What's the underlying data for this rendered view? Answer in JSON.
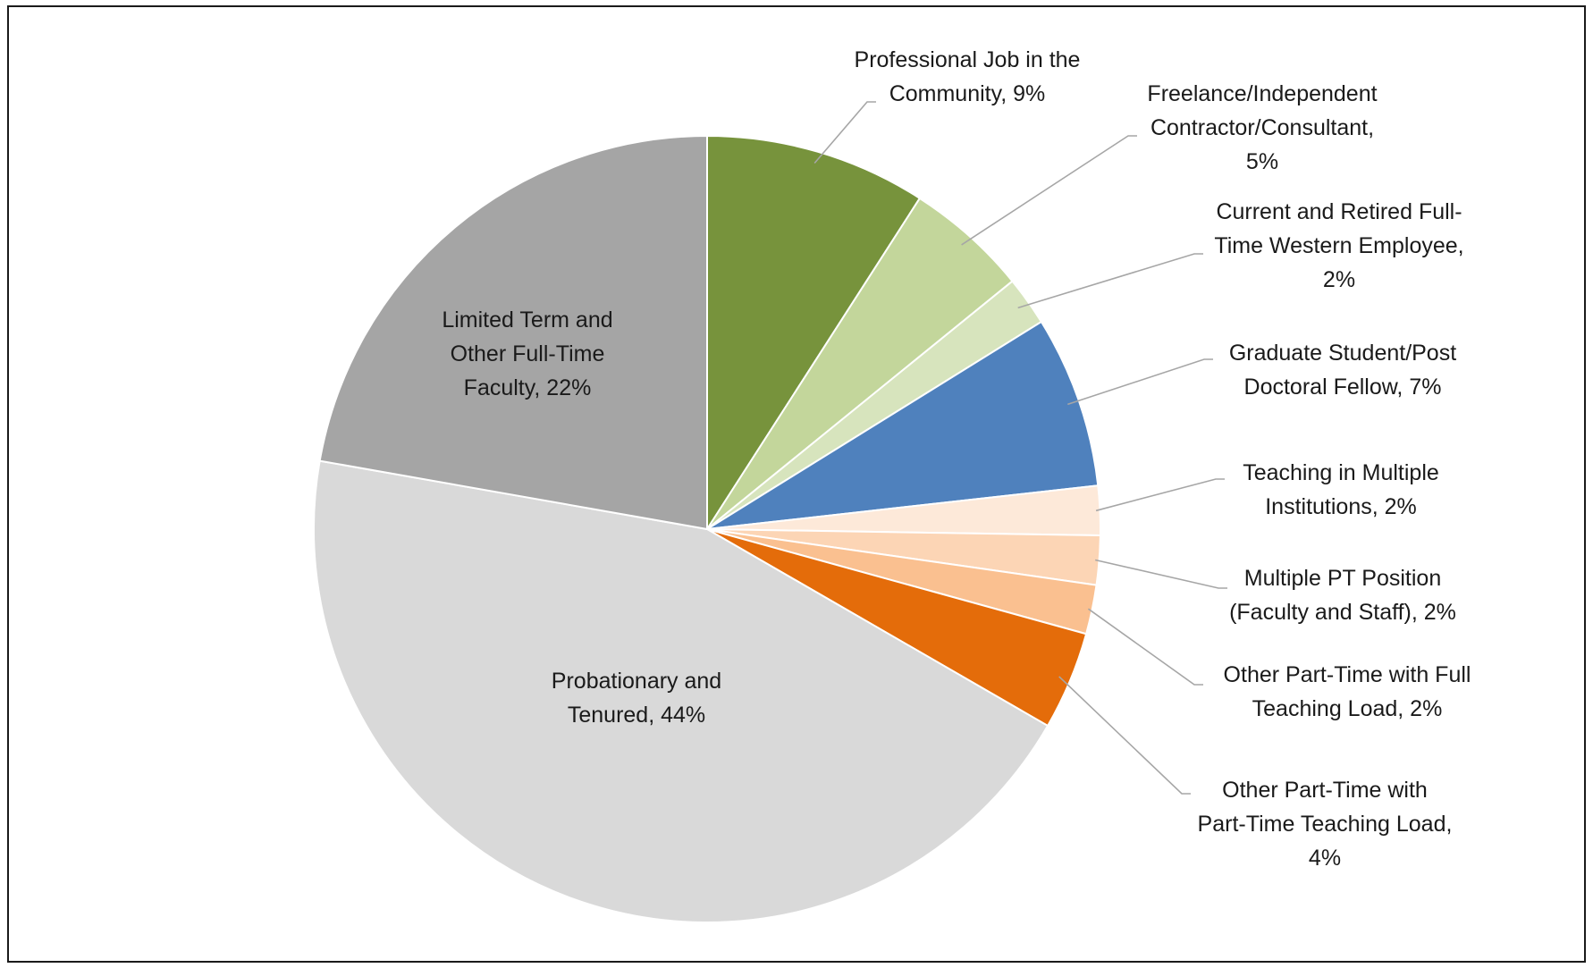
{
  "chart_data": {
    "type": "pie",
    "start_angle_deg": 0,
    "direction": "clockwise",
    "slices": [
      {
        "label": "Professional Job in the Community",
        "value": 9,
        "color": "#77933c",
        "label_lines": [
          "Professional Job in the",
          "Community, 9%"
        ],
        "placement": "outside"
      },
      {
        "label": "Freelance/Independent Contractor/Consultant",
        "value": 5,
        "color": "#c3d69b",
        "label_lines": [
          "Freelance/Independent",
          "Contractor/Consultant,",
          "5%"
        ],
        "placement": "outside"
      },
      {
        "label": "Current and Retired Full-Time Western Employee",
        "value": 2,
        "color": "#d7e4bd",
        "label_lines": [
          "Current and Retired Full-",
          "Time Western Employee,",
          "2%"
        ],
        "placement": "outside"
      },
      {
        "label": "Graduate Student/Post Doctoral Fellow",
        "value": 7,
        "color": "#4f81bd",
        "label_lines": [
          "Graduate Student/Post",
          "Doctoral Fellow, 7%"
        ],
        "placement": "outside"
      },
      {
        "label": "Teaching in Multiple Institutions",
        "value": 2,
        "color": "#fde9d9",
        "label_lines": [
          "Teaching in Multiple",
          "Institutions, 2%"
        ],
        "placement": "outside"
      },
      {
        "label": "Multiple PT Position (Faculty and Staff)",
        "value": 2,
        "color": "#fcd5b5",
        "label_lines": [
          "Multiple PT Position",
          "(Faculty and Staff), 2%"
        ],
        "placement": "outside"
      },
      {
        "label": "Other Part-Time with Full Teaching Load",
        "value": 2,
        "color": "#fac090",
        "label_lines": [
          "Other Part-Time with Full",
          "Teaching Load, 2%"
        ],
        "placement": "outside"
      },
      {
        "label": "Other Part-Time with Part-Time Teaching Load",
        "value": 4,
        "color": "#e46c0a",
        "label_lines": [
          "Other Part-Time with",
          "Part-Time Teaching Load,",
          "4%"
        ],
        "placement": "outside"
      },
      {
        "label": "Probationary and Tenured",
        "value": 44,
        "color": "#d9d9d9",
        "label_lines": [
          "Probationary and",
          "Tenured, 44%"
        ],
        "placement": "inside"
      },
      {
        "label": "Limited Term and Other Full-Time Faculty",
        "value": 22,
        "color": "#a5a5a5",
        "label_lines": [
          "Limited Term and",
          "Other Full-Time",
          "Faculty, 22%"
        ],
        "placement": "inside"
      }
    ],
    "legend": "none",
    "title": ""
  }
}
